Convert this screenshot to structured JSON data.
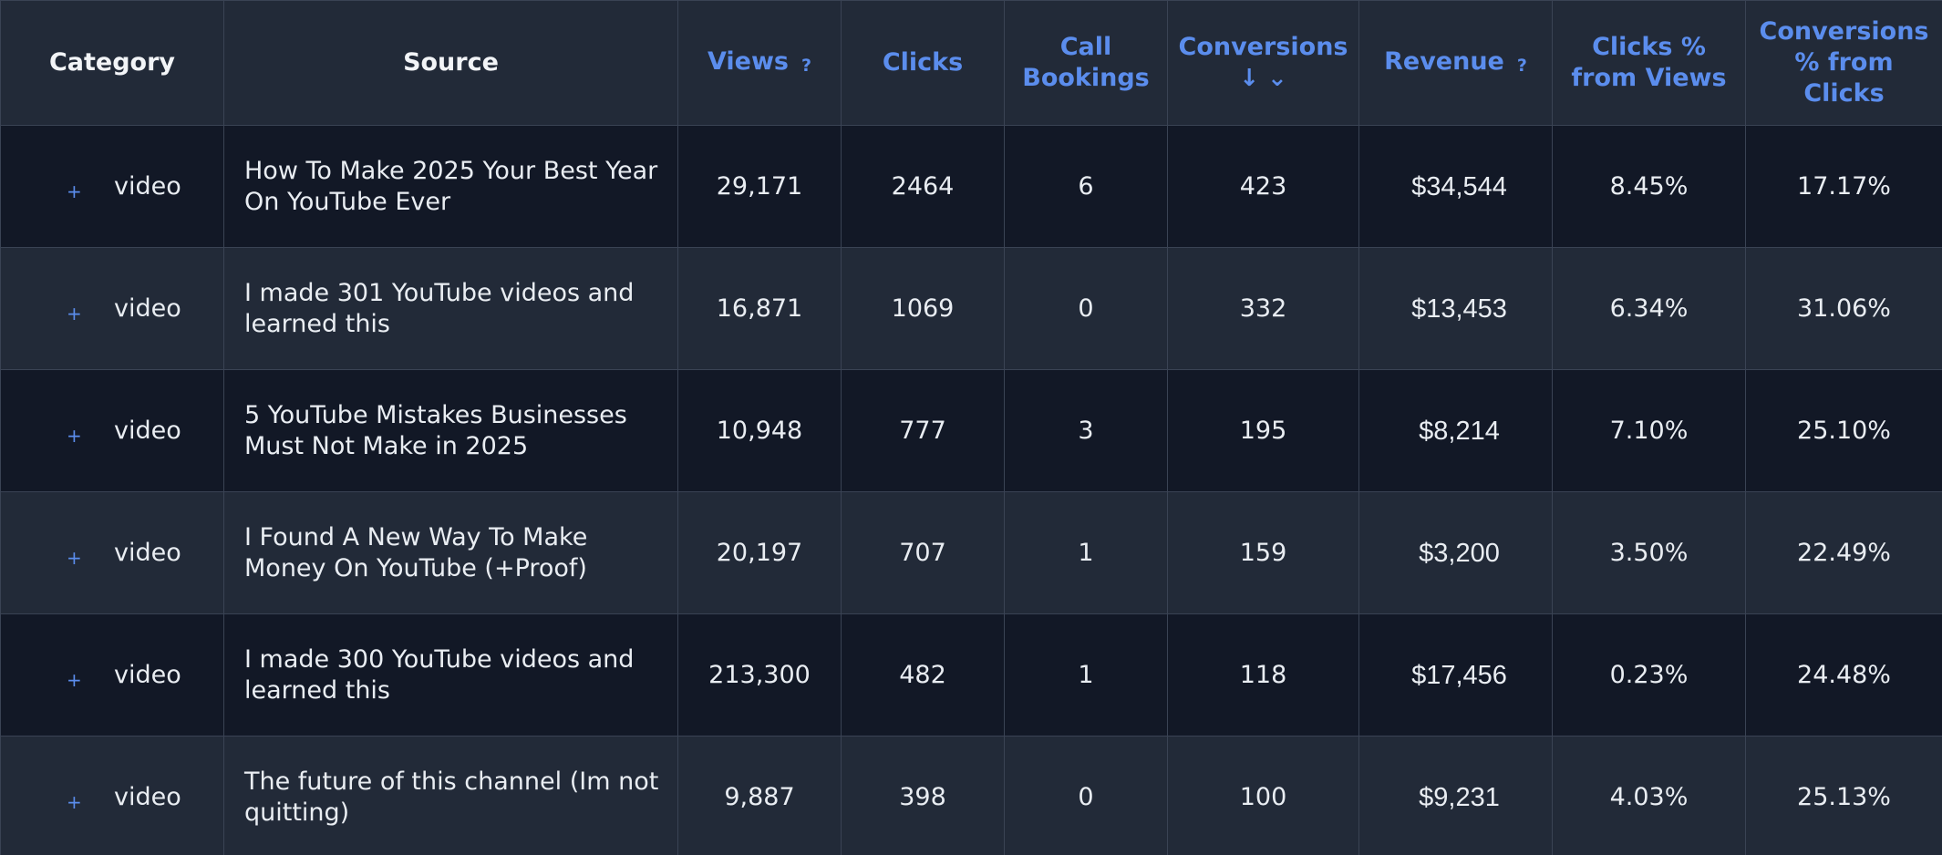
{
  "columns": {
    "category": "Category",
    "source": "Source",
    "views": "Views",
    "views_help": "?",
    "clicks": "Clicks",
    "call_bookings_1": "Call",
    "call_bookings_2": "Bookings",
    "conversions": "Conversions",
    "conversions_sort": "↓ ⌄",
    "revenue": "Revenue",
    "revenue_help": "?",
    "clicks_pct_1": "Clicks %",
    "clicks_pct_2": "from Views",
    "conv_pct_1": "Conversions",
    "conv_pct_2": "% from",
    "conv_pct_3": "Clicks"
  },
  "expand_icon": "+",
  "colors": {
    "accent": "#5b8ded",
    "row_dark": "#121826",
    "row_light": "#222a38",
    "border": "#3a4354",
    "text": "#e9edf2"
  },
  "rows": [
    {
      "category": "video",
      "source": "How To Make 2025 Your Best Year On YouTube Ever",
      "views": "29,171",
      "clicks": "2464",
      "call_bookings": "6",
      "conversions": "423",
      "revenue": "$34,544",
      "clicks_pct": "8.45%",
      "conv_pct": "17.17%"
    },
    {
      "category": "video",
      "source": "I made 301 YouTube videos and learned this",
      "views": "16,871",
      "clicks": "1069",
      "call_bookings": "0",
      "conversions": "332",
      "revenue": "$13,453",
      "clicks_pct": "6.34%",
      "conv_pct": "31.06%"
    },
    {
      "category": "video",
      "source": "5 YouTube Mistakes Businesses Must Not Make in 2025",
      "views": "10,948",
      "clicks": "777",
      "call_bookings": "3",
      "conversions": "195",
      "revenue": "$8,214",
      "clicks_pct": "7.10%",
      "conv_pct": "25.10%"
    },
    {
      "category": "video",
      "source": "I Found A New Way To Make Money On YouTube (+Proof)",
      "views": "20,197",
      "clicks": "707",
      "call_bookings": "1",
      "conversions": "159",
      "revenue": "$3,200",
      "clicks_pct": "3.50%",
      "conv_pct": "22.49%"
    },
    {
      "category": "video",
      "source": "I made 300 YouTube videos and learned this",
      "views": "213,300",
      "clicks": "482",
      "call_bookings": "1",
      "conversions": "118",
      "revenue": "$17,456",
      "clicks_pct": "0.23%",
      "conv_pct": "24.48%"
    },
    {
      "category": "video",
      "source": "The future of this channel (Im not quitting)",
      "views": "9,887",
      "clicks": "398",
      "call_bookings": "0",
      "conversions": "100",
      "revenue": "$9,231",
      "clicks_pct": "4.03%",
      "conv_pct": "25.13%"
    }
  ]
}
